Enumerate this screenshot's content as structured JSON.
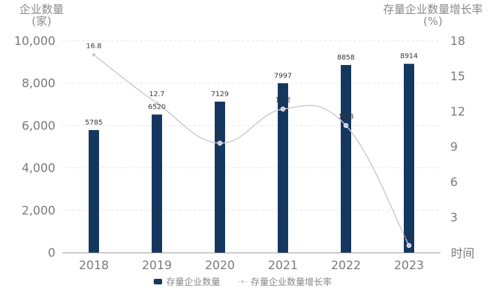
{
  "chart_data": {
    "type": "bar+line",
    "categories": [
      "2018",
      "2019",
      "2020",
      "2021",
      "2022",
      "2023"
    ],
    "series": [
      {
        "name": "存量企业数量",
        "type": "bar",
        "axis": "left",
        "values": [
          5785,
          6520,
          7129,
          7997,
          8858,
          8914
        ],
        "color": "#14375f"
      },
      {
        "name": "存量企业数量增长率",
        "type": "line",
        "axis": "right",
        "values": [
          16.8,
          12.7,
          9.3,
          12.2,
          10.8,
          0.6
        ],
        "color": "#c9c7d9"
      }
    ],
    "ylabel_left": [
      "企业数量",
      "(家)"
    ],
    "ylabel_right": [
      "存量企业数量增长率",
      "(%)"
    ],
    "xlabel": "时间",
    "ylim_left": [
      0,
      10000
    ],
    "yticks_left": [
      "0",
      "2,000",
      "4,000",
      "6,000",
      "8,000",
      "10,000"
    ],
    "ylim_right": [
      0,
      18
    ],
    "yticks_right": [
      "3",
      "6",
      "9",
      "12",
      "15",
      "18"
    ],
    "grid": true,
    "legend": "bottom"
  }
}
